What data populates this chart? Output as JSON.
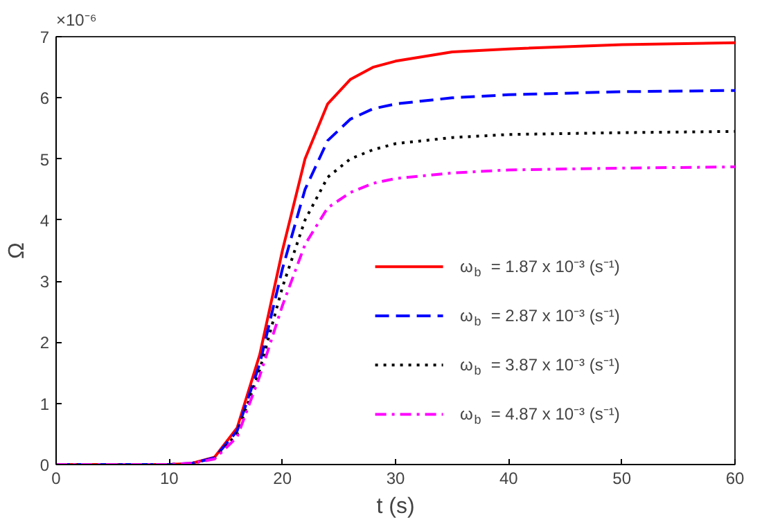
{
  "chart_data": {
    "type": "line",
    "xlabel": "t (s)",
    "ylabel": "Ω",
    "annotations": [
      "×10⁻⁶"
    ],
    "xlim": [
      0,
      60
    ],
    "xticks": [
      0,
      10,
      20,
      30,
      40,
      50,
      60
    ],
    "ylim": [
      0,
      7
    ],
    "yticks": [
      0,
      1,
      2,
      3,
      4,
      5,
      6,
      7
    ],
    "grid": false,
    "legend": "bottom right",
    "series": [
      {
        "name": "ω$_{b}$ = 1.87 x 10⁻³ (s⁻¹)",
        "color": "#ff0000",
        "line_style": "solid",
        "x": [
          0,
          10,
          12,
          14,
          16,
          18,
          20,
          22,
          24,
          26,
          28,
          30,
          35,
          40,
          50,
          60
        ],
        "values": [
          0,
          0,
          0.02,
          0.12,
          0.6,
          1.8,
          3.5,
          5.0,
          5.9,
          6.3,
          6.5,
          6.6,
          6.75,
          6.8,
          6.87,
          6.9
        ]
      },
      {
        "name": "ω$_{b}$ = 2.87 x 10⁻³ (s⁻¹)",
        "color": "#0000ff",
        "line_style": "dashed",
        "x": [
          0,
          10,
          12,
          14,
          16,
          18,
          20,
          22,
          24,
          26,
          28,
          30,
          35,
          40,
          50,
          60
        ],
        "values": [
          0,
          0,
          0.02,
          0.11,
          0.55,
          1.65,
          3.2,
          4.5,
          5.3,
          5.65,
          5.82,
          5.9,
          6.0,
          6.05,
          6.1,
          6.12
        ]
      },
      {
        "name": "ω$_{b}$ = 3.87 x 10⁻³ (s⁻¹)",
        "color": "#000000",
        "line_style": "dotted",
        "x": [
          0,
          10,
          12,
          14,
          16,
          18,
          20,
          22,
          24,
          26,
          28,
          30,
          35,
          40,
          50,
          60
        ],
        "values": [
          0,
          0,
          0.02,
          0.1,
          0.5,
          1.55,
          2.9,
          4.0,
          4.7,
          5.0,
          5.15,
          5.25,
          5.35,
          5.4,
          5.43,
          5.45
        ]
      },
      {
        "name": "ω$_{b}$ = 4.87 x 10⁻³ (s⁻¹)",
        "color": "#ff00ff",
        "line_style": "dashdot",
        "x": [
          0,
          10,
          12,
          14,
          16,
          18,
          20,
          22,
          24,
          26,
          28,
          30,
          35,
          40,
          50,
          60
        ],
        "values": [
          0,
          0,
          0.02,
          0.09,
          0.45,
          1.45,
          2.6,
          3.6,
          4.2,
          4.45,
          4.6,
          4.68,
          4.77,
          4.82,
          4.85,
          4.87
        ]
      }
    ]
  }
}
